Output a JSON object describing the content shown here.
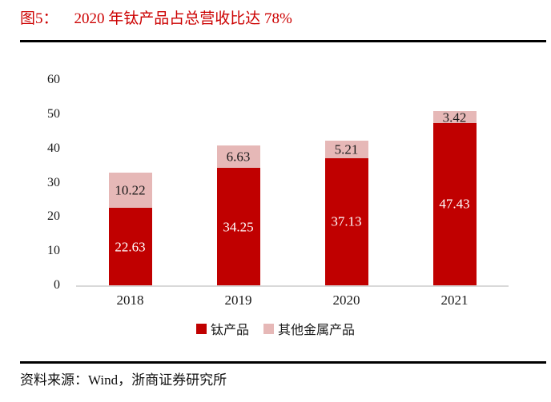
{
  "figure": {
    "label": "图5：",
    "title": "2020 年钛产品占总营收比达 78%"
  },
  "chart_data": {
    "type": "bar",
    "stacked": true,
    "title": "2020 年钛产品占总营收比达 78%",
    "categories": [
      "2018",
      "2019",
      "2020",
      "2021"
    ],
    "series": [
      {
        "name": "钛产品",
        "color": "#c00000",
        "label_color": "#ffffff",
        "values": [
          22.63,
          34.25,
          37.13,
          47.43
        ]
      },
      {
        "name": "其他金属产品",
        "color": "#e6b8b7",
        "label_color": "#1a1a1a",
        "values": [
          10.22,
          6.63,
          5.21,
          3.42
        ]
      }
    ],
    "ylim": [
      0,
      60
    ],
    "ytick_step": 10,
    "yticks": [
      0,
      10,
      20,
      30,
      40,
      50,
      60
    ],
    "grid": false,
    "legend_position": "bottom",
    "axis_line_color": "#d9d9d9"
  },
  "footer": {
    "source": "资料来源：Wind，浙商证券研究所"
  }
}
